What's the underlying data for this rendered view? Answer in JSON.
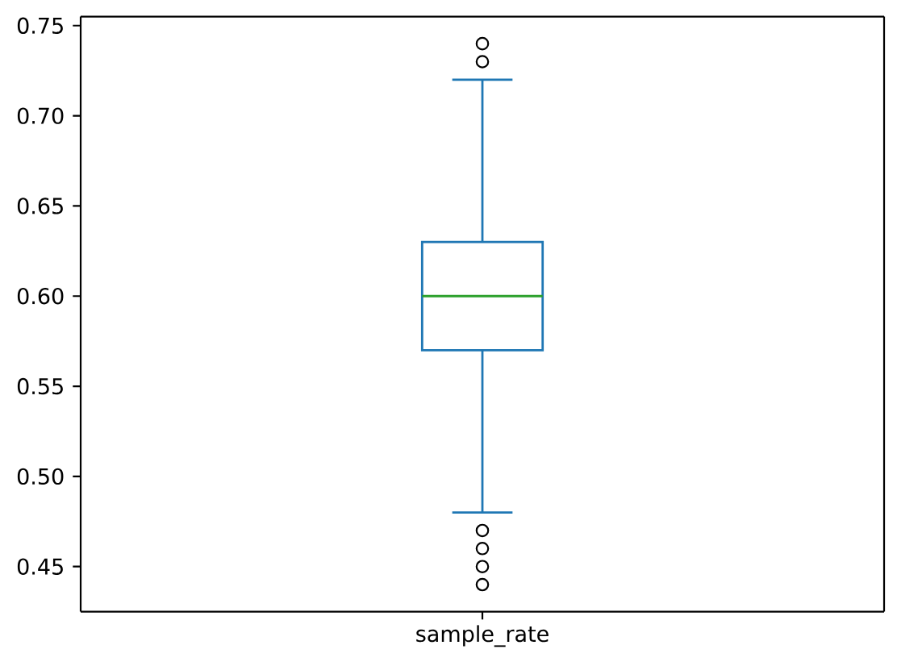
{
  "chart_data": {
    "type": "box",
    "categories": [
      "sample_rate"
    ],
    "color": "#1f77b4",
    "marker": "circle",
    "boxes": [
      {
        "low": 0.48,
        "q1": 0.57,
        "median": 0.6,
        "q3": 0.63,
        "high": 0.72,
        "outliers": [
          0.74,
          0.73,
          0.47,
          0.46,
          0.45,
          0.44
        ]
      }
    ],
    "ylim": [
      0.425,
      0.755
    ],
    "yticks": [
      {
        "value": 0.45,
        "label": "0.45"
      },
      {
        "value": 0.5,
        "label": "0.50"
      },
      {
        "value": 0.55,
        "label": "0.55"
      },
      {
        "value": 0.6,
        "label": "0.60"
      },
      {
        "value": 0.65,
        "label": "0.65"
      },
      {
        "value": 0.7,
        "label": "0.70"
      },
      {
        "value": 0.75,
        "label": "0.75"
      }
    ]
  }
}
